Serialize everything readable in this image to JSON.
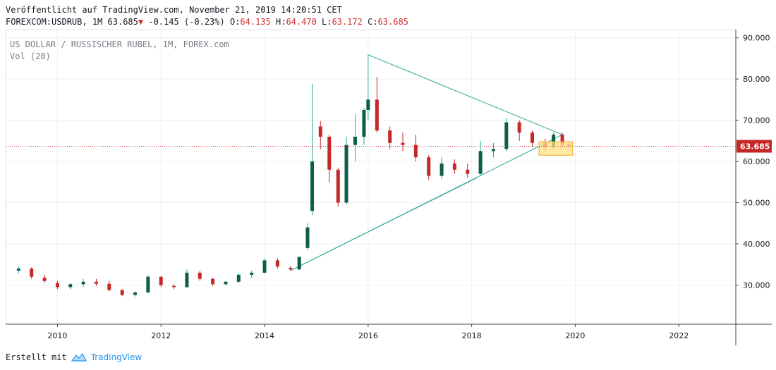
{
  "header": {
    "published": "Veröffentlicht auf TradingView.com, November 21, 2019 14:20:51 CET",
    "symbol": "FOREXCOM:USDRUB, 1M",
    "price": "63.685",
    "arrow": "▼",
    "change": "-0.145 (-0.23%)",
    "o_label": "O:",
    "o_value": "64.135",
    "h_label": "H:",
    "h_value": "64.470",
    "l_label": "L:",
    "l_value": "63.172",
    "c_label": "C:",
    "c_value": "63.685"
  },
  "legend": {
    "title": "US DOLLAR / RUSSISCHER RUBEL, 1M, FOREX.com",
    "volume": "Vol (20)"
  },
  "footer": {
    "created_with": "Erstellt mit",
    "brand": "TradingView"
  },
  "colors": {
    "up": "#0d5e48",
    "down": "#c62828",
    "wick": "#26a69a",
    "trendline": "#4db6a4",
    "price_line": "#c62828",
    "price_label_bg": "#c62828",
    "highlight_fill": "#ffe082",
    "highlight_stroke": "#f9a825"
  },
  "chart_data": {
    "type": "candlestick",
    "title": "US DOLLAR / RUSSISCHER RUBEL, 1M, FOREX.com",
    "y_ticks": [
      "30.000",
      "40.000",
      "50.000",
      "60.000",
      "70.000",
      "80.000",
      "90.000"
    ],
    "x_ticks": [
      "2010",
      "2012",
      "2014",
      "2016",
      "2018",
      "2020",
      "2022"
    ],
    "ylim": [
      20.5,
      92
    ],
    "xlim": [
      2009.0,
      2023.1
    ],
    "last_price": 63.685,
    "last_price_label": "63.685",
    "candles": [
      {
        "t": 2009.25,
        "o": 33.5,
        "h": 34.5,
        "l": 32.8,
        "c": 34.0
      },
      {
        "t": 2009.5,
        "o": 34.0,
        "h": 34.3,
        "l": 31.5,
        "c": 32.0
      },
      {
        "t": 2009.75,
        "o": 31.8,
        "h": 32.5,
        "l": 30.5,
        "c": 31.0
      },
      {
        "t": 2010.0,
        "o": 30.5,
        "h": 31.0,
        "l": 29.0,
        "c": 29.5
      },
      {
        "t": 2010.25,
        "o": 29.5,
        "h": 30.5,
        "l": 28.9,
        "c": 30.2
      },
      {
        "t": 2010.5,
        "o": 30.2,
        "h": 31.5,
        "l": 29.5,
        "c": 30.8
      },
      {
        "t": 2010.75,
        "o": 30.8,
        "h": 31.5,
        "l": 29.8,
        "c": 30.3
      },
      {
        "t": 2011.0,
        "o": 30.3,
        "h": 31.0,
        "l": 28.5,
        "c": 28.8
      },
      {
        "t": 2011.25,
        "o": 28.8,
        "h": 29.0,
        "l": 27.3,
        "c": 27.6
      },
      {
        "t": 2011.5,
        "o": 27.6,
        "h": 28.5,
        "l": 27.2,
        "c": 28.2
      },
      {
        "t": 2011.75,
        "o": 28.2,
        "h": 32.5,
        "l": 28.0,
        "c": 32.0
      },
      {
        "t": 2012.0,
        "o": 32.0,
        "h": 32.2,
        "l": 29.5,
        "c": 30.0
      },
      {
        "t": 2012.25,
        "o": 29.8,
        "h": 30.2,
        "l": 29.0,
        "c": 29.5
      },
      {
        "t": 2012.5,
        "o": 29.5,
        "h": 33.8,
        "l": 29.3,
        "c": 33.0
      },
      {
        "t": 2012.75,
        "o": 33.0,
        "h": 33.5,
        "l": 31.0,
        "c": 31.5
      },
      {
        "t": 2013.0,
        "o": 31.5,
        "h": 31.8,
        "l": 29.8,
        "c": 30.2
      },
      {
        "t": 2013.25,
        "o": 30.2,
        "h": 31.0,
        "l": 29.8,
        "c": 30.8
      },
      {
        "t": 2013.5,
        "o": 30.8,
        "h": 33.0,
        "l": 30.5,
        "c": 32.5
      },
      {
        "t": 2013.75,
        "o": 32.5,
        "h": 33.5,
        "l": 31.8,
        "c": 33.0
      },
      {
        "t": 2014.0,
        "o": 33.0,
        "h": 36.5,
        "l": 32.8,
        "c": 36.0
      },
      {
        "t": 2014.25,
        "o": 36.0,
        "h": 36.5,
        "l": 34.0,
        "c": 34.5
      },
      {
        "t": 2014.5,
        "o": 34.2,
        "h": 34.6,
        "l": 33.5,
        "c": 33.8
      },
      {
        "t": 2014.67,
        "o": 33.8,
        "h": 37.0,
        "l": 33.6,
        "c": 36.8
      },
      {
        "t": 2014.83,
        "o": 39.0,
        "h": 45.0,
        "l": 38.5,
        "c": 44.0
      },
      {
        "t": 2014.92,
        "o": 48.0,
        "h": 78.9,
        "l": 47.0,
        "c": 60.0
      },
      {
        "t": 2015.08,
        "o": 68.5,
        "h": 69.8,
        "l": 63.0,
        "c": 66.0
      },
      {
        "t": 2015.25,
        "o": 66.0,
        "h": 66.5,
        "l": 55.0,
        "c": 58.0
      },
      {
        "t": 2015.42,
        "o": 58.0,
        "h": 58.5,
        "l": 49.0,
        "c": 50.0
      },
      {
        "t": 2015.58,
        "o": 50.0,
        "h": 66.0,
        "l": 49.5,
        "c": 64.0
      },
      {
        "t": 2015.75,
        "o": 64.0,
        "h": 71.5,
        "l": 60.0,
        "c": 66.0
      },
      {
        "t": 2015.92,
        "o": 66.0,
        "h": 73.0,
        "l": 64.0,
        "c": 72.5
      },
      {
        "t": 2016.0,
        "o": 72.5,
        "h": 85.9,
        "l": 70.0,
        "c": 75.0
      },
      {
        "t": 2016.17,
        "o": 75.0,
        "h": 80.5,
        "l": 67.0,
        "c": 67.5
      },
      {
        "t": 2016.42,
        "o": 67.5,
        "h": 68.5,
        "l": 63.0,
        "c": 64.5
      },
      {
        "t": 2016.67,
        "o": 64.5,
        "h": 67.0,
        "l": 62.5,
        "c": 64.0
      },
      {
        "t": 2016.92,
        "o": 64.0,
        "h": 66.5,
        "l": 60.0,
        "c": 61.0
      },
      {
        "t": 2017.17,
        "o": 61.0,
        "h": 61.5,
        "l": 55.5,
        "c": 56.5
      },
      {
        "t": 2017.42,
        "o": 56.5,
        "h": 61.0,
        "l": 55.8,
        "c": 59.5
      },
      {
        "t": 2017.67,
        "o": 59.5,
        "h": 60.5,
        "l": 57.0,
        "c": 58.0
      },
      {
        "t": 2017.92,
        "o": 58.0,
        "h": 59.5,
        "l": 56.0,
        "c": 57.0
      },
      {
        "t": 2018.17,
        "o": 57.0,
        "h": 65.0,
        "l": 56.5,
        "c": 62.5
      },
      {
        "t": 2018.42,
        "o": 62.5,
        "h": 64.5,
        "l": 61.0,
        "c": 63.0
      },
      {
        "t": 2018.67,
        "o": 63.0,
        "h": 70.5,
        "l": 62.5,
        "c": 69.5
      },
      {
        "t": 2018.92,
        "o": 69.5,
        "h": 70.0,
        "l": 65.0,
        "c": 67.0
      },
      {
        "t": 2019.17,
        "o": 67.0,
        "h": 67.5,
        "l": 63.5,
        "c": 64.5
      },
      {
        "t": 2019.42,
        "o": 64.5,
        "h": 65.5,
        "l": 62.5,
        "c": 63.5
      },
      {
        "t": 2019.58,
        "o": 63.5,
        "h": 67.0,
        "l": 63.0,
        "c": 66.5
      },
      {
        "t": 2019.75,
        "o": 66.5,
        "h": 67.0,
        "l": 63.5,
        "c": 64.1
      },
      {
        "t": 2019.88,
        "o": 64.1,
        "h": 64.5,
        "l": 63.2,
        "c": 63.7
      }
    ],
    "trendlines": [
      {
        "from": {
          "t": 2016.0,
          "v": 85.9
        },
        "to": {
          "t": 2019.75,
          "v": 66.5
        }
      },
      {
        "from": {
          "t": 2014.5,
          "v": 33.5
        },
        "to": {
          "t": 2019.75,
          "v": 66.5
        }
      },
      {
        "from": {
          "t": 2014.5,
          "v": 33.5
        },
        "to": {
          "t": 2018.1,
          "v": 56.0
        }
      }
    ],
    "highlight": {
      "t0": 2019.3,
      "t1": 2019.95,
      "v0": 61.5,
      "v1": 64.8
    }
  }
}
